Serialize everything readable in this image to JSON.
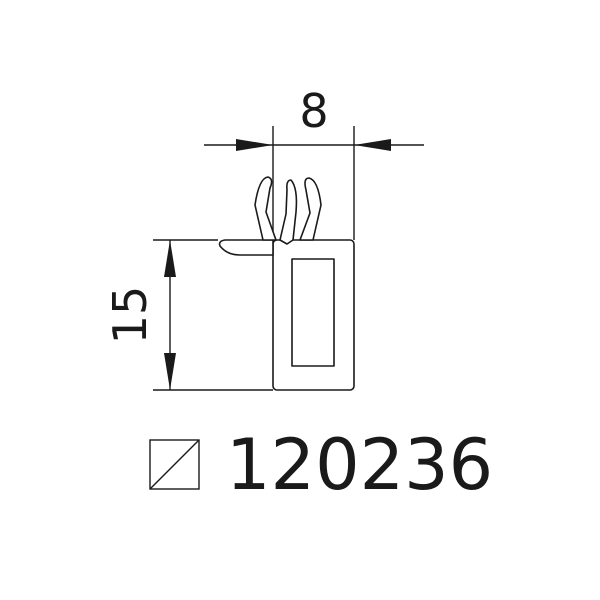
{
  "dimensions": {
    "width_label": "8",
    "height_label": "15"
  },
  "product": {
    "code": "120236",
    "symbol_icon": "square-diagonal-icon"
  },
  "colors": {
    "line": "#1a1a1a",
    "background": "#ffffff"
  }
}
